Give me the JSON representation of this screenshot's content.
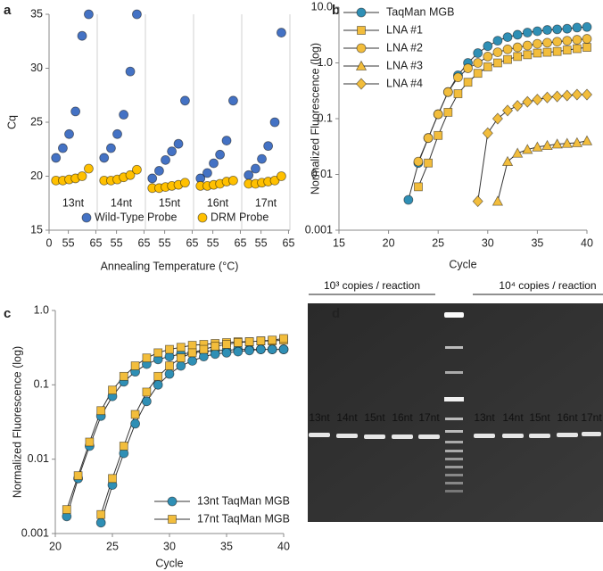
{
  "panel_labels": [
    "a",
    "b",
    "c",
    "d"
  ],
  "chart_data": [
    {
      "type": "scatter",
      "xlabel": "Annealing Temperature (°C)",
      "ylabel": "Cq",
      "xlim": [
        0,
        87.5
      ],
      "xticks": [
        {
          "value": 0,
          "label": "0"
        },
        {
          "value": 7,
          "label": "55"
        },
        {
          "value": 17,
          "label": "65"
        },
        {
          "value": 24.5,
          "label": "55"
        },
        {
          "value": 34.5,
          "label": "65"
        },
        {
          "value": 42,
          "label": "55"
        },
        {
          "value": 52,
          "label": "65"
        },
        {
          "value": 59.5,
          "label": "55"
        },
        {
          "value": 69.5,
          "label": "65"
        },
        {
          "value": 77,
          "label": "55"
        },
        {
          "value": 87,
          "label": "65"
        }
      ],
      "ylim": [
        15,
        35
      ],
      "yticks": [
        15,
        20,
        25,
        30,
        35
      ],
      "group_labels": [
        "13nt",
        "14nt",
        "15nt",
        "16nt",
        "17nt"
      ],
      "legend": "bottom",
      "series": [
        {
          "name": "Wild-Type Probe",
          "color": "#4472c4",
          "marker": "circle",
          "x": [
            2.5,
            5,
            7.3,
            9.6,
            12,
            14.4,
            20,
            22.5,
            24.8,
            27.1,
            29.5,
            31.9,
            37.5,
            40,
            42.3,
            44.6,
            47,
            49.4,
            55,
            57.5,
            59.8,
            62.1,
            64.5,
            66.9,
            72.5,
            75,
            77.3,
            79.6,
            82,
            84.4
          ],
          "values": [
            21.7,
            22.6,
            23.9,
            26,
            33,
            35,
            21.7,
            22.6,
            23.9,
            25.7,
            29.7,
            35,
            19.8,
            20.5,
            21.5,
            22.3,
            23,
            27,
            19.8,
            20.3,
            21.2,
            22,
            23.3,
            27,
            20.1,
            20.7,
            21.6,
            22.8,
            25,
            33.3
          ]
        },
        {
          "name": "DRM Probe",
          "color": "#ffc000",
          "marker": "circle",
          "x": [
            2.5,
            5,
            7.3,
            9.6,
            12,
            14.4,
            20,
            22.5,
            24.8,
            27.1,
            29.5,
            31.9,
            37.5,
            40,
            42.3,
            44.6,
            47,
            49.4,
            55,
            57.5,
            59.8,
            62.1,
            64.5,
            66.9,
            72.5,
            75,
            77.3,
            79.6,
            82,
            84.4
          ],
          "values": [
            19.6,
            19.6,
            19.7,
            19.8,
            20,
            20.7,
            19.6,
            19.6,
            19.7,
            19.9,
            20.1,
            20.6,
            18.9,
            18.9,
            19,
            19.1,
            19.2,
            19.4,
            19.1,
            19.1,
            19.2,
            19.3,
            19.5,
            19.6,
            19.3,
            19.3,
            19.4,
            19.5,
            19.6,
            20
          ]
        }
      ]
    },
    {
      "type": "line",
      "xlabel": "Cycle",
      "ylabel": "Normalized Fluorescence (log)",
      "log": true,
      "xlim": [
        15,
        40
      ],
      "xticks": [
        15,
        20,
        25,
        30,
        35,
        40
      ],
      "ylim": [
        0.001,
        10
      ],
      "yticks": [
        0.001,
        0.01,
        0.1,
        {
          "value": 1,
          "label": "1.0"
        },
        {
          "value": 10,
          "label": "10.0"
        }
      ],
      "legend": "top-left",
      "series": [
        {
          "name": "TaqMan MGB",
          "color": "#2f8fb5",
          "marker": "circle",
          "x": [
            22,
            23,
            24,
            25,
            26,
            27,
            28,
            29,
            30,
            31,
            32,
            33,
            34,
            35,
            36,
            37,
            38,
            39,
            40
          ],
          "values": [
            0.0035,
            0.016,
            0.045,
            0.12,
            0.3,
            0.6,
            1,
            1.5,
            2,
            2.5,
            2.9,
            3.2,
            3.5,
            3.7,
            3.9,
            4,
            4.1,
            4.3,
            4.4
          ]
        },
        {
          "name": "LNA #1",
          "color": "#f2bd3c",
          "marker": "square",
          "x": [
            23,
            24,
            25,
            26,
            27,
            28,
            29,
            30,
            31,
            32,
            33,
            34,
            35,
            36,
            37,
            38,
            39,
            40
          ],
          "values": [
            0.006,
            0.016,
            0.05,
            0.13,
            0.28,
            0.45,
            0.65,
            0.85,
            1,
            1.15,
            1.3,
            1.4,
            1.5,
            1.55,
            1.6,
            1.7,
            1.8,
            1.9
          ]
        },
        {
          "name": "LNA #2",
          "color": "#f2bd3c",
          "marker": "circle",
          "x": [
            23,
            24,
            25,
            26,
            27,
            28,
            29,
            30,
            31,
            32,
            33,
            34,
            35,
            36,
            37,
            38,
            39,
            40
          ],
          "values": [
            0.017,
            0.045,
            0.12,
            0.3,
            0.55,
            0.8,
            1,
            1.3,
            1.55,
            1.75,
            1.9,
            2.05,
            2.2,
            2.3,
            2.4,
            2.5,
            2.6,
            2.7
          ]
        },
        {
          "name": "LNA #3",
          "color": "#f2bd3c",
          "marker": "triangle",
          "x": [
            31,
            32,
            33,
            34,
            35,
            36,
            37,
            38,
            39,
            40
          ],
          "values": [
            0.0033,
            0.017,
            0.024,
            0.028,
            0.031,
            0.033,
            0.035,
            0.036,
            0.037,
            0.04
          ]
        },
        {
          "name": "LNA #4",
          "color": "#f2bd3c",
          "marker": "diamond",
          "x": [
            29,
            30,
            31,
            32,
            33,
            34,
            35,
            36,
            37,
            38,
            39,
            40
          ],
          "values": [
            0.0033,
            0.055,
            0.1,
            0.14,
            0.17,
            0.2,
            0.22,
            0.24,
            0.25,
            0.26,
            0.27,
            0.27
          ]
        }
      ]
    },
    {
      "type": "line",
      "xlabel": "Cycle",
      "ylabel": "Normalized Fluorescence (log)",
      "log": true,
      "xlim": [
        20,
        40
      ],
      "xticks": [
        20,
        25,
        30,
        35,
        40
      ],
      "ylim": [
        0.001,
        1
      ],
      "yticks": [
        0.001,
        0.01,
        0.1,
        {
          "value": 1,
          "label": "1.0"
        }
      ],
      "legend": "bottom-right",
      "series": [
        {
          "name": "13nt TaqMan MGB",
          "color": "#2f8fb5",
          "marker": "circle",
          "x": [
            21,
            22,
            23,
            24,
            25,
            26,
            27,
            28,
            29,
            30,
            31,
            32,
            33,
            34,
            35,
            36,
            37,
            38,
            39,
            40,
            null,
            24,
            25,
            26,
            27,
            28,
            29,
            30,
            31,
            32,
            33,
            34,
            35,
            36,
            37,
            38,
            39,
            40
          ],
          "values": [
            0.0017,
            0.0055,
            0.015,
            0.038,
            0.07,
            0.11,
            0.15,
            0.19,
            0.22,
            0.24,
            0.26,
            0.27,
            0.28,
            0.29,
            0.29,
            0.3,
            0.3,
            0.3,
            0.3,
            0.3,
            null,
            0.0014,
            0.0045,
            0.012,
            0.03,
            0.06,
            0.1,
            0.14,
            0.18,
            0.21,
            0.24,
            0.26,
            0.27,
            0.28,
            0.29,
            0.3,
            0.3,
            0.3
          ]
        },
        {
          "name": "17nt TaqMan MGB",
          "color": "#f2bd3c",
          "marker": "square",
          "x": [
            21,
            22,
            23,
            24,
            25,
            26,
            27,
            28,
            29,
            30,
            31,
            32,
            33,
            34,
            35,
            36,
            37,
            38,
            39,
            40,
            null,
            24,
            25,
            26,
            27,
            28,
            29,
            30,
            31,
            32,
            33,
            34,
            35,
            36,
            37,
            38,
            39,
            40
          ],
          "values": [
            0.0021,
            0.006,
            0.017,
            0.045,
            0.085,
            0.13,
            0.18,
            0.23,
            0.27,
            0.3,
            0.32,
            0.34,
            0.35,
            0.36,
            0.37,
            0.38,
            0.38,
            0.39,
            0.39,
            0.4,
            null,
            0.0018,
            0.0055,
            0.015,
            0.04,
            0.08,
            0.13,
            0.18,
            0.23,
            0.27,
            0.3,
            0.33,
            0.35,
            0.37,
            0.38,
            0.39,
            0.4,
            0.42
          ]
        }
      ]
    }
  ],
  "gel": {
    "group_labels": [
      "10³ copies / reaction",
      "10⁴ copies / reaction"
    ],
    "lane_labels": [
      [
        "13nt",
        "14nt",
        "15nt",
        "16nt",
        "17nt"
      ],
      [
        "13nt",
        "14nt",
        "15nt",
        "16nt",
        "17nt"
      ]
    ]
  }
}
